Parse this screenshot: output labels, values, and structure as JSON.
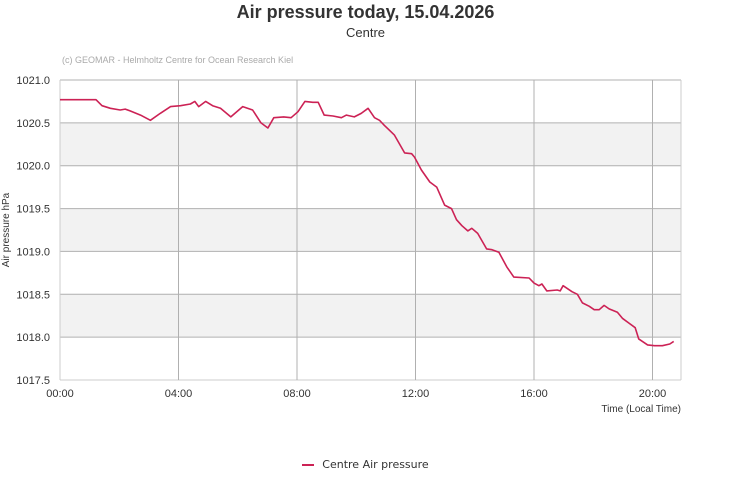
{
  "header": {
    "title": "Air pressure today, 15.04.2026",
    "subtitle": "Centre",
    "credit": "(c) GEOMAR - Helmholtz Centre for Ocean Research Kiel"
  },
  "legend": {
    "label": "Centre Air pressure",
    "color": "#cc2255"
  },
  "colors": {
    "line": "#cc2255",
    "band": "#f2f2f2",
    "grid": "#b0b0b0",
    "text": "#333333"
  },
  "chart_data": {
    "type": "line",
    "title": "Air pressure today, 15.04.2026",
    "subtitle": "Centre",
    "xlabel": "Time (Local Time)",
    "ylabel": "Air pressure hPa",
    "ylim": [
      1017.5,
      1021.0
    ],
    "yticks": [
      "1017.5",
      "1018.0",
      "1018.5",
      "1019.0",
      "1019.5",
      "1020.0",
      "1020.5",
      "1021.0"
    ],
    "xlim_hours": [
      0,
      21.05
    ],
    "xticks": [
      "00:00",
      "04:00",
      "08:00",
      "12:00",
      "16:00",
      "20:00"
    ],
    "grid": true,
    "legend_position": "bottom-center",
    "series": [
      {
        "name": "Centre Air pressure",
        "x": [
          "00:00",
          "01:13",
          "01:25",
          "01:42",
          "02:02",
          "02:12",
          "02:22",
          "02:43",
          "03:03",
          "03:23",
          "03:44",
          "04:04",
          "04:24",
          "04:33",
          "04:41",
          "04:55",
          "05:09",
          "05:25",
          "05:46",
          "06:10",
          "06:30",
          "06:47",
          "07:01",
          "07:13",
          "07:33",
          "07:48",
          "08:02",
          "08:16",
          "08:32",
          "08:43",
          "08:55",
          "09:13",
          "09:30",
          "09:40",
          "09:56",
          "10:10",
          "10:24",
          "10:37",
          "10:47",
          "10:57",
          "11:17",
          "11:38",
          "11:52",
          "11:58",
          "12:12",
          "12:29",
          "12:43",
          "12:59",
          "13:13",
          "13:23",
          "13:34",
          "13:46",
          "13:54",
          "14:06",
          "14:24",
          "14:35",
          "14:49",
          "15:05",
          "15:19",
          "15:50",
          "16:00",
          "16:10",
          "16:16",
          "16:26",
          "16:47",
          "16:53",
          "16:59",
          "17:17",
          "17:28",
          "17:38",
          "17:52",
          "18:02",
          "18:12",
          "18:22",
          "18:32",
          "18:49",
          "18:59",
          "19:13",
          "19:25",
          "19:32",
          "19:50",
          "20:04",
          "20:20",
          "20:35",
          "20:43"
        ],
        "values": [
          1020.77,
          1020.77,
          1020.7,
          1020.67,
          1020.65,
          1020.66,
          1020.64,
          1020.59,
          1020.53,
          1020.61,
          1020.69,
          1020.7,
          1020.72,
          1020.75,
          1020.69,
          1020.75,
          1020.7,
          1020.67,
          1020.57,
          1020.69,
          1020.65,
          1020.5,
          1020.44,
          1020.56,
          1020.57,
          1020.56,
          1020.63,
          1020.75,
          1020.74,
          1020.74,
          1020.59,
          1020.58,
          1020.56,
          1020.59,
          1020.57,
          1020.61,
          1020.67,
          1020.56,
          1020.53,
          1020.47,
          1020.36,
          1020.15,
          1020.14,
          1020.1,
          1019.95,
          1019.81,
          1019.75,
          1019.54,
          1019.5,
          1019.37,
          1019.3,
          1019.24,
          1019.27,
          1019.21,
          1019.03,
          1019.02,
          1018.99,
          1018.82,
          1018.7,
          1018.69,
          1018.63,
          1018.6,
          1018.62,
          1018.54,
          1018.55,
          1018.54,
          1018.6,
          1018.53,
          1018.5,
          1018.4,
          1018.36,
          1018.32,
          1018.32,
          1018.37,
          1018.33,
          1018.29,
          1018.22,
          1018.16,
          1018.11,
          1017.98,
          1017.91,
          1017.9,
          1017.9,
          1017.92,
          1017.95
        ]
      }
    ]
  }
}
